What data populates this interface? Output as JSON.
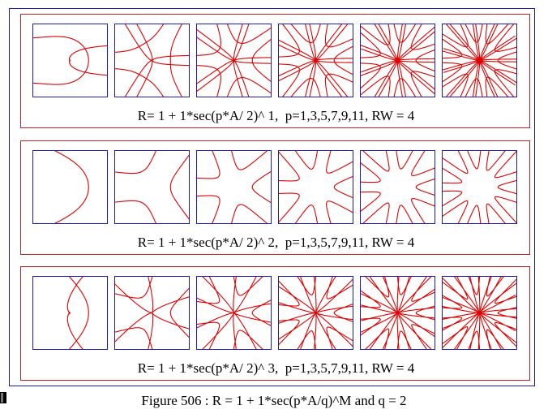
{
  "figure_caption": "Figure 506 : R = 1 + 1*sec(p*A/q)^M and q = 2",
  "colors": {
    "curve": "#dd0000",
    "panel_border": "#c02020",
    "box_border": "#1b1bb0"
  },
  "panels": [
    {
      "caption": "R= 1 + 1*sec(p*A/ 2)^ 1,  p=1,3,5,7,9,11, RW = 4",
      "M": 1,
      "q": 2,
      "p_values": [
        1,
        3,
        5,
        7,
        9,
        11
      ]
    },
    {
      "caption": "R= 1 + 1*sec(p*A/ 2)^ 2,  p=1,3,5,7,9,11, RW = 4",
      "M": 2,
      "q": 2,
      "p_values": [
        1,
        3,
        5,
        7,
        9,
        11
      ]
    },
    {
      "caption": "R= 1 + 1*sec(p*A/ 2)^ 3,  p=1,3,5,7,9,11, RW = 4",
      "M": 3,
      "q": 2,
      "p_values": [
        1,
        3,
        5,
        7,
        9,
        11
      ]
    }
  ]
}
